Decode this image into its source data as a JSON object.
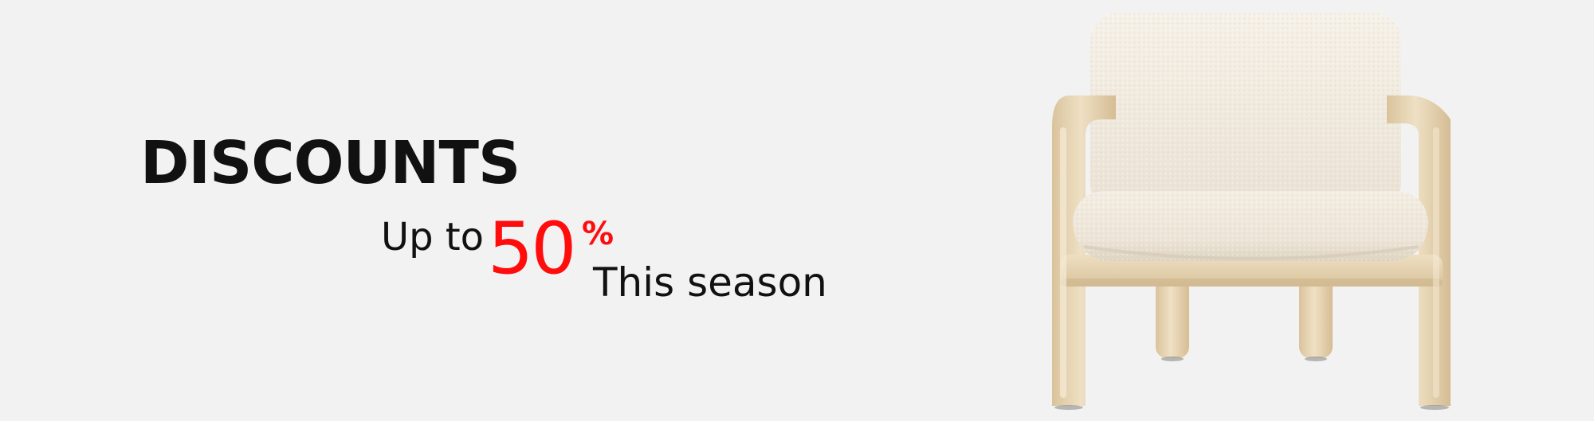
{
  "banner": {
    "headline": "DISCOUNTS",
    "promo": {
      "prefix": "Up to",
      "value": "50",
      "percent_sign": "%",
      "suffix": "This season"
    }
  },
  "colors": {
    "background": "#f2f2f2",
    "text": "#111111",
    "accent": "#ff0d0d",
    "upholstery": "#f3ede2",
    "wood": "#e6d4b4"
  },
  "image": {
    "icon": "armchair-product-image"
  }
}
